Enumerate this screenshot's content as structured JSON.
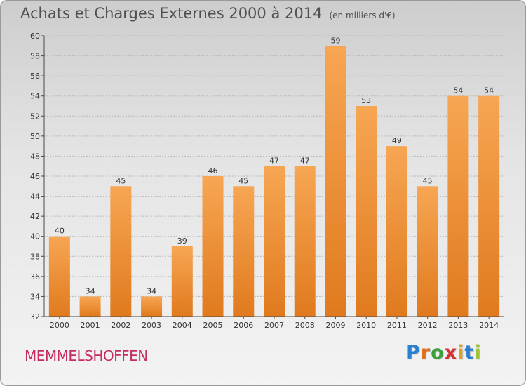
{
  "title": "Achats et Charges Externes 2000 à 2014",
  "unit": "(en milliers d'€)",
  "place": "MEMMELSHOFFEN",
  "logo": {
    "letters": [
      "P",
      "r",
      "o",
      "x",
      "i",
      "t",
      "i"
    ],
    "colors": [
      "#2a7fd0",
      "#e0701c",
      "#3aa03a",
      "#d83030",
      "#e0a11c",
      "#2a7fd0",
      "#9fc43a"
    ]
  },
  "colors": {
    "bar_top": "#f7a653",
    "bar_bottom": "#e07a1e",
    "axis": "#4a4a4a",
    "grid": "#b8b8b8"
  },
  "chart_data": {
    "type": "bar",
    "categories": [
      "2000",
      "2001",
      "2002",
      "2003",
      "2004",
      "2005",
      "2006",
      "2007",
      "2008",
      "2009",
      "2010",
      "2011",
      "2012",
      "2013",
      "2014"
    ],
    "values": [
      40,
      34,
      45,
      34,
      39,
      46,
      45,
      47,
      47,
      59,
      53,
      49,
      45,
      54,
      54
    ],
    "ylim": [
      32,
      60
    ],
    "yticks": [
      32,
      34,
      36,
      38,
      40,
      42,
      44,
      46,
      48,
      50,
      52,
      54,
      56,
      58,
      60
    ],
    "grid": true,
    "title": "Achats et Charges Externes 2000 à 2014",
    "xlabel": "",
    "ylabel": ""
  }
}
